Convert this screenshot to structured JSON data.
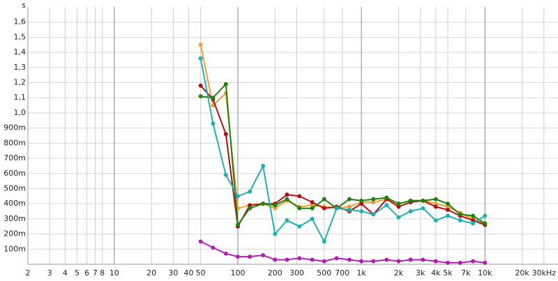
{
  "chart_data": {
    "type": "line",
    "y_unit": "s",
    "x": [
      50,
      63,
      80,
      100,
      125,
      160,
      200,
      250,
      315,
      400,
      500,
      630,
      800,
      1000,
      1250,
      1600,
      2000,
      2500,
      3150,
      4000,
      5000,
      6300,
      8000,
      10000
    ],
    "series": [
      {
        "color": "#e8a030",
        "values": [
          1.45,
          1.05,
          1.13,
          0.37,
          0.39,
          0.4,
          0.37,
          0.42,
          0.38,
          0.39,
          0.38,
          0.37,
          0.38,
          0.41,
          0.41,
          0.43,
          0.4,
          0.42,
          0.42,
          0.4,
          0.38,
          0.34,
          0.3,
          0.27
        ]
      },
      {
        "color": "#b01010",
        "values": [
          1.18,
          1.09,
          0.86,
          0.25,
          0.39,
          0.4,
          0.4,
          0.46,
          0.45,
          0.41,
          0.37,
          0.38,
          0.35,
          0.4,
          0.33,
          0.43,
          0.38,
          0.41,
          0.42,
          0.38,
          0.36,
          0.32,
          0.29,
          0.26
        ]
      },
      {
        "color": "#208010",
        "values": [
          1.11,
          1.1,
          1.19,
          0.26,
          0.37,
          0.4,
          0.39,
          0.43,
          0.37,
          0.37,
          0.43,
          0.37,
          0.43,
          0.42,
          0.43,
          0.44,
          0.4,
          0.42,
          0.42,
          0.43,
          0.4,
          0.33,
          0.32,
          0.27
        ]
      },
      {
        "color": "#20b0b0",
        "values": [
          1.36,
          0.93,
          0.59,
          0.45,
          0.48,
          0.65,
          0.2,
          0.29,
          0.25,
          0.3,
          0.15,
          0.37,
          0.36,
          0.35,
          0.33,
          0.39,
          0.31,
          0.35,
          0.37,
          0.29,
          0.32,
          0.29,
          0.27,
          0.32
        ]
      },
      {
        "color": "#b020b0",
        "values": [
          0.15,
          0.11,
          0.07,
          0.05,
          0.05,
          0.06,
          0.03,
          0.03,
          0.04,
          0.03,
          0.02,
          0.04,
          0.03,
          0.02,
          0.02,
          0.03,
          0.02,
          0.03,
          0.03,
          0.02,
          0.01,
          0.01,
          0.02,
          0.01
        ]
      }
    ],
    "xscale": "log",
    "xlim": [
      2,
      39000
    ],
    "xticks": [
      2,
      3,
      4,
      5,
      6,
      7,
      8,
      10,
      20,
      30,
      40,
      50,
      100,
      200,
      300,
      500,
      700,
      {
        "value": 1000,
        "label": "1k"
      },
      {
        "value": 2000,
        "label": "2k"
      },
      {
        "value": 3000,
        "label": "3k"
      },
      {
        "value": 4000,
        "label": "4k"
      },
      {
        "value": 5000,
        "label": "5k"
      },
      {
        "value": 7000,
        "label": "7k"
      },
      {
        "value": 10000,
        "label": "10k"
      },
      {
        "value": 20000,
        "label": "20k"
      },
      {
        "value": 30000,
        "label": "30kHz"
      }
    ],
    "ylim": [
      0,
      1.7
    ],
    "yticks": [
      {
        "value": 0.1,
        "label": "100m"
      },
      {
        "value": 0.2,
        "label": "200m"
      },
      {
        "value": 0.3,
        "label": "300m"
      },
      {
        "value": 0.4,
        "label": "400m"
      },
      {
        "value": 0.5,
        "label": "500m"
      },
      {
        "value": 0.6,
        "label": "600m"
      },
      {
        "value": 0.7,
        "label": "700m"
      },
      {
        "value": 0.8,
        "label": "800m"
      },
      {
        "value": 0.9,
        "label": "900m"
      },
      {
        "value": 1.0,
        "label": "1,0"
      },
      {
        "value": 1.1,
        "label": "1,1"
      },
      {
        "value": 1.2,
        "label": "1,2"
      },
      {
        "value": 1.3,
        "label": "1,3"
      },
      {
        "value": 1.4,
        "label": "1,4"
      },
      {
        "value": 1.5,
        "label": "1,5"
      },
      {
        "value": 1.6,
        "label": "1,6"
      }
    ],
    "grid": true
  }
}
